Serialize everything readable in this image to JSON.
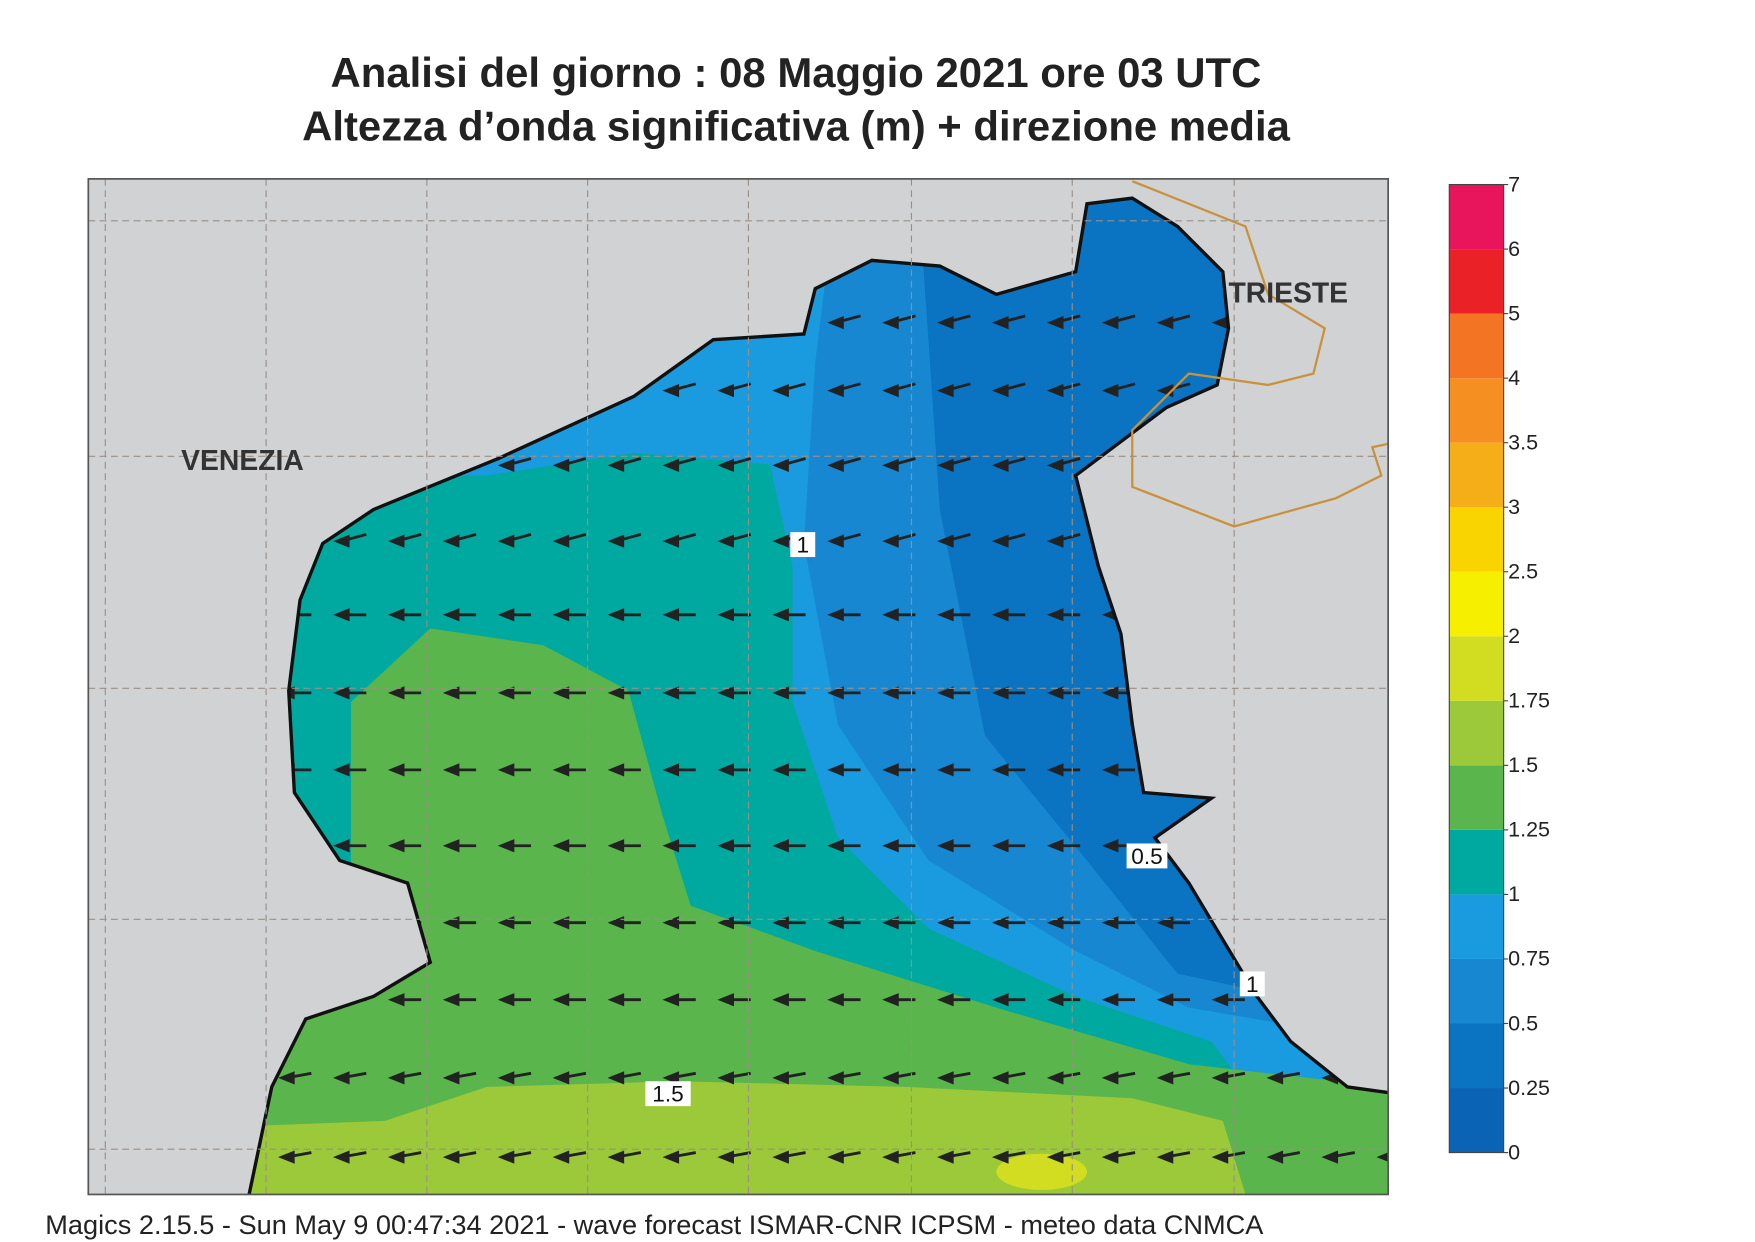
{
  "title": [
    "Analisi del giorno :  08   Maggio  2021   ore 03 UTC",
    "Altezza d’onda significativa (m) + direzione media"
  ],
  "map": {
    "places": [
      "VENEZIA",
      "TRIESTE"
    ],
    "contour_labels": [
      "1",
      "0.5",
      "1",
      "1.5"
    ]
  },
  "colorbar": {
    "levels": [
      0,
      0.25,
      0.5,
      0.75,
      1,
      1.25,
      1.5,
      1.75,
      2,
      2.5,
      3,
      3.5,
      4,
      5,
      6,
      7
    ],
    "colors": [
      "#0a63b4",
      "#0a73c2",
      "#1787d2",
      "#1a9be0",
      "#00a9a0",
      "#5ab54c",
      "#9bc93a",
      "#d2dd22",
      "#f7ef00",
      "#f9d400",
      "#f6ae18",
      "#f58f22",
      "#f37524",
      "#ea2228",
      "#e8155c"
    ]
  },
  "footer": "Magics 2.15.5 - Sun May  9 00:47:34 2021 - wave forecast  ISMAR-CNR  ICPSM - meteo data   CNMCA"
}
